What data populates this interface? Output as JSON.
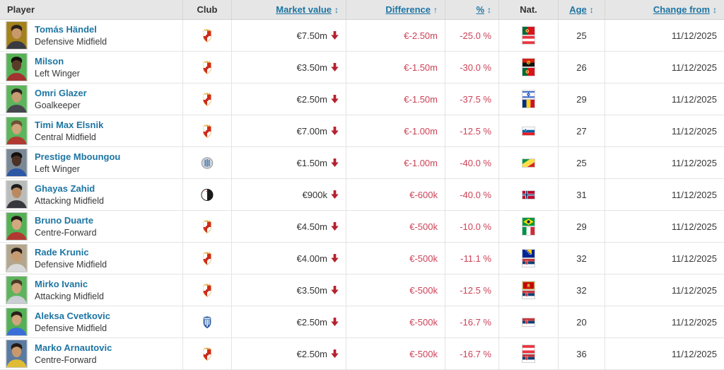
{
  "header": {
    "player_label": "Player",
    "club_label": "Club",
    "market_value_label": "Market value",
    "difference_label": "Difference",
    "percent_label": "%",
    "nat_label": "Nat.",
    "age_label": "Age",
    "change_from_label": "Change from",
    "sort_icon_both": "↕",
    "sort_icon_asc": "↑"
  },
  "colors": {
    "link_blue": "#1d75a3",
    "negative_red": "#cc4257",
    "arrow_red": "#b5212e",
    "header_bg": "#e6e6e6"
  },
  "players": [
    {
      "name": "Tomás Händel",
      "position": "Defensive Midfield",
      "club_logo": "red-star-crest",
      "market_value": "€7.50m",
      "trend": "down",
      "difference": "€-2.50m",
      "percent": "-25.0 %",
      "nationalities": [
        "Portugal",
        "Austria"
      ],
      "age": "25",
      "change_from": "11/12/2025",
      "photo": {
        "bg": "#a3821d",
        "skin": "#c9996b",
        "shirt": "#3a3a42",
        "hair": "#2a211c"
      }
    },
    {
      "name": "Milson",
      "position": "Left Winger",
      "club_logo": "red-star-crest",
      "market_value": "€3.50m",
      "trend": "down",
      "difference": "€-1.50m",
      "percent": "-30.0 %",
      "nationalities": [
        "Angola",
        "Portugal"
      ],
      "age": "26",
      "change_from": "11/12/2025",
      "photo": {
        "bg": "#57b257",
        "skin": "#5a3b28",
        "shirt": "#a33330",
        "hair": "#15100c"
      }
    },
    {
      "name": "Omri Glazer",
      "position": "Goalkeeper",
      "club_logo": "red-star-crest",
      "market_value": "€2.50m",
      "trend": "down",
      "difference": "€-1.50m",
      "percent": "-37.5 %",
      "nationalities": [
        "Israel",
        "Romania"
      ],
      "age": "29",
      "change_from": "11/12/2025",
      "photo": {
        "bg": "#5cb55c",
        "skin": "#c79b72",
        "shirt": "#46464e",
        "hair": "#2b2320"
      }
    },
    {
      "name": "Timi Max Elsnik",
      "position": "Central Midfield",
      "club_logo": "red-star-crest",
      "market_value": "€7.00m",
      "trend": "down",
      "difference": "€-1.00m",
      "percent": "-12.5 %",
      "nationalities": [
        "Slovenia"
      ],
      "age": "27",
      "change_from": "11/12/2025",
      "photo": {
        "bg": "#5cb55c",
        "skin": "#cfa57b",
        "shirt": "#b03a32",
        "hair": "#6b5236"
      }
    },
    {
      "name": "Prestige Mboungou",
      "position": "Left Winger",
      "club_logo": "gray-circle-crest",
      "market_value": "€1.50m",
      "trend": "down",
      "difference": "€-1.00m",
      "percent": "-40.0 %",
      "nationalities": [
        "Congo"
      ],
      "age": "25",
      "change_from": "11/12/2025",
      "photo": {
        "bg": "#7a8896",
        "skin": "#4a3226",
        "shirt": "#2b57a5",
        "hair": "#15100c"
      }
    },
    {
      "name": "Ghayas Zahid",
      "position": "Attacking Midfield",
      "club_logo": "black-white-circle-crest",
      "market_value": "€900k",
      "trend": "down",
      "difference": "€-600k",
      "percent": "-40.0 %",
      "nationalities": [
        "Norway"
      ],
      "age": "31",
      "change_from": "11/12/2025",
      "photo": {
        "bg": "#b9bcb9",
        "skin": "#b98a62",
        "shirt": "#37373d",
        "hair": "#1c1c1c"
      }
    },
    {
      "name": "Bruno Duarte",
      "position": "Centre-Forward",
      "club_logo": "red-star-crest",
      "market_value": "€4.50m",
      "trend": "down",
      "difference": "€-500k",
      "percent": "-10.0 %",
      "nationalities": [
        "Brazil",
        "Italy"
      ],
      "age": "29",
      "change_from": "11/12/2025",
      "photo": {
        "bg": "#55b055",
        "skin": "#d2a87e",
        "shirt": "#b03a32",
        "hair": "#231b16"
      }
    },
    {
      "name": "Rade Krunic",
      "position": "Defensive Midfield",
      "club_logo": "red-star-crest",
      "market_value": "€4.00m",
      "trend": "down",
      "difference": "€-500k",
      "percent": "-11.1 %",
      "nationalities": [
        "Bosnia-Herzegovina",
        "Serbia"
      ],
      "age": "32",
      "change_from": "11/12/2025",
      "photo": {
        "bg": "#b4a68d",
        "skin": "#c79b72",
        "shirt": "#d9d9d9",
        "hair": "#231b16"
      }
    },
    {
      "name": "Mirko Ivanic",
      "position": "Attacking Midfield",
      "club_logo": "red-star-crest",
      "market_value": "€3.50m",
      "trend": "down",
      "difference": "€-500k",
      "percent": "-12.5 %",
      "nationalities": [
        "Montenegro",
        "Serbia"
      ],
      "age": "32",
      "change_from": "11/12/2025",
      "photo": {
        "bg": "#5db45d",
        "skin": "#cfa57b",
        "shirt": "#c9ced3",
        "hair": "#4a3b2a"
      }
    },
    {
      "name": "Aleksa Cvetkovic",
      "position": "Defensive Midfield",
      "club_logo": "blue-striped-shield-crest",
      "market_value": "€2.50m",
      "trend": "down",
      "difference": "€-500k",
      "percent": "-16.7 %",
      "nationalities": [
        "Serbia"
      ],
      "age": "20",
      "change_from": "11/12/2025",
      "photo": {
        "bg": "#55b055",
        "skin": "#cfa57b",
        "shirt": "#3a6fd8",
        "hair": "#2a211c"
      }
    },
    {
      "name": "Marko Arnautovic",
      "position": "Centre-Forward",
      "club_logo": "red-star-crest",
      "market_value": "€2.50m",
      "trend": "down",
      "difference": "€-500k",
      "percent": "-16.7 %",
      "nationalities": [
        "Austria",
        "Serbia"
      ],
      "age": "36",
      "change_from": "11/12/2025",
      "photo": {
        "bg": "#5a7aa0",
        "skin": "#c9996b",
        "shirt": "#e0bc35",
        "hair": "#231b16"
      }
    }
  ]
}
